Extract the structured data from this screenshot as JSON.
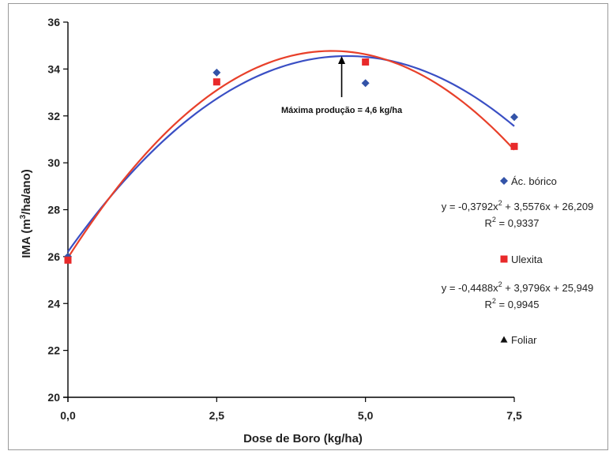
{
  "chart_data": {
    "type": "scatter",
    "title": "",
    "xlabel": "Dose de Boro (kg/ha)",
    "ylabel_main": "IMA (m",
    "ylabel_sup": "3",
    "ylabel_end": "/ha/ano)",
    "xlim": [
      0,
      7.5
    ],
    "ylim": [
      20,
      36
    ],
    "x_ticks": [
      "0,0",
      "2,5",
      "5,0",
      "7,5"
    ],
    "x_tick_values": [
      0,
      2.5,
      5,
      7.5
    ],
    "y_ticks": [
      "20",
      "22",
      "24",
      "26",
      "28",
      "30",
      "32",
      "34",
      "36"
    ],
    "y_tick_values": [
      20,
      22,
      24,
      26,
      28,
      30,
      32,
      34,
      36
    ],
    "grid": false,
    "series": [
      {
        "name": "Ác. bórico",
        "marker": "diamond",
        "color": "#3353a8",
        "x": [
          0,
          2.5,
          5,
          7.5
        ],
        "y": [
          26.0,
          33.85,
          33.4,
          31.95
        ],
        "trend": {
          "a": -0.3792,
          "b": 3.5576,
          "c": 26.209,
          "color": "#3a4fc4"
        },
        "equation": "y = -0,3792x",
        "equation_sup": "2",
        "equation_rest": " + 3,5576x + 26,209",
        "r2_label": "R",
        "r2_sup": "2",
        "r2_value": " = 0,9337"
      },
      {
        "name": "Ulexita",
        "marker": "square",
        "color": "#e8292a",
        "x": [
          0,
          2.5,
          5,
          7.5
        ],
        "y": [
          25.85,
          33.45,
          34.3,
          30.7
        ],
        "trend": {
          "a": -0.4488,
          "b": 3.9796,
          "c": 25.949,
          "color": "#e8402a"
        },
        "equation": "y = -0,4488x",
        "equation_sup": "2",
        "equation_rest": " + 3,9796x + 25,949",
        "r2_label": "R",
        "r2_sup": "2",
        "r2_value": " = 0,9945"
      },
      {
        "name": "Foliar",
        "marker": "triangle",
        "color": "#111111",
        "x": [],
        "y": []
      }
    ],
    "annotation": {
      "text": "Máxima produção = 4,6 kg/ha",
      "arrow_x": 4.6,
      "arrow_y_tip": 34.55,
      "arrow_y_tail": 32.8
    }
  }
}
